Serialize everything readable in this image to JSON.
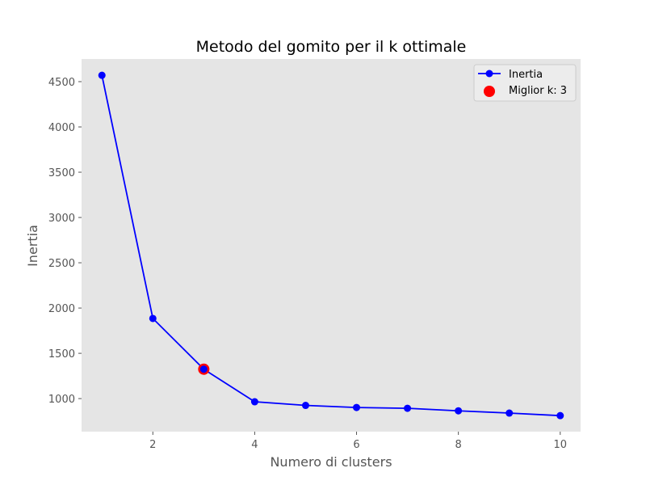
{
  "chart_data": {
    "type": "line",
    "title": "Metodo del gomito per il k ottimale",
    "xlabel": "Numero di clusters",
    "ylabel": "Inertia",
    "x": [
      1,
      2,
      3,
      4,
      5,
      6,
      7,
      8,
      9,
      10
    ],
    "series": [
      {
        "name": "Inertia",
        "color": "#0000ff",
        "values": [
          4570,
          1885,
          1325,
          965,
          925,
          902,
          893,
          865,
          840,
          812
        ]
      }
    ],
    "highlight": {
      "name": "Miglior k: 3",
      "x": 3,
      "y": 1325,
      "color": "#ff0000"
    },
    "xticks": [
      2,
      4,
      6,
      8,
      10
    ],
    "yticks": [
      1000,
      1500,
      2000,
      2500,
      3000,
      3500,
      4000,
      4500
    ],
    "xlim": [
      0.6,
      10.4
    ],
    "ylim": [
      635,
      4750
    ],
    "grid": false,
    "background": "#e5e5e5",
    "legend_position": "top-right"
  }
}
